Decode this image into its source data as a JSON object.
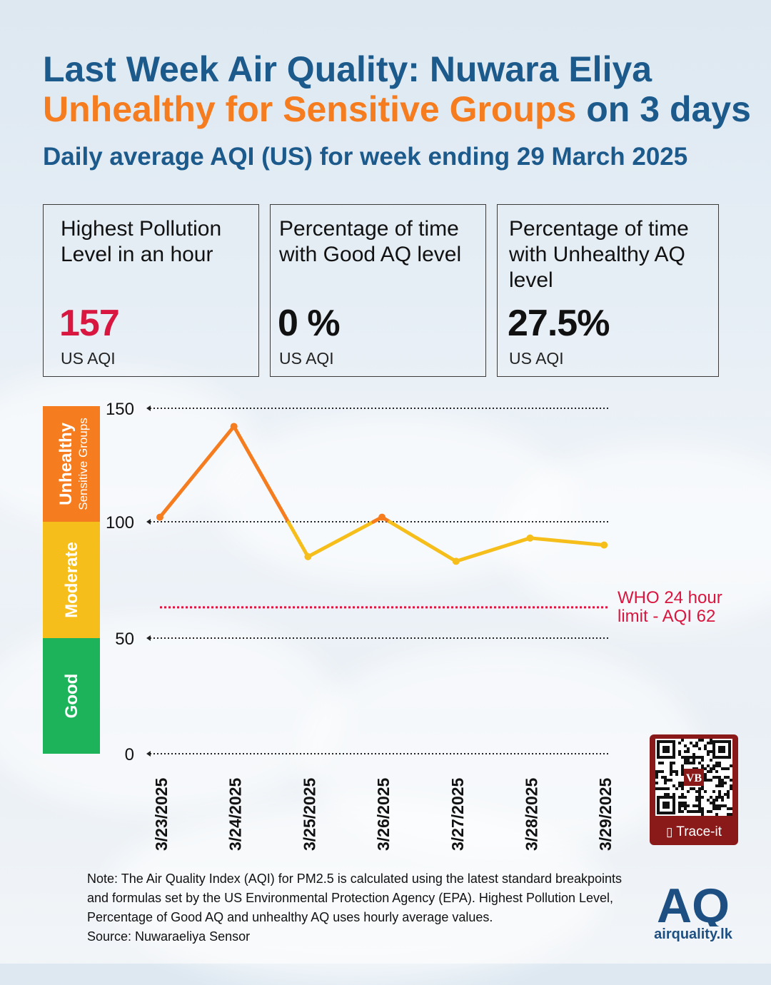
{
  "header": {
    "title_line1": "Last Week Air Quality: Nuwara Eliya",
    "title_line2_accent": "Unhealthy for Sensitive Groups",
    "title_line2_rest": " on 3 days",
    "subtitle": "Daily average AQI (US) for week ending 29 March 2025"
  },
  "cards": [
    {
      "label": "Highest Pollution Level in an hour",
      "value": "157",
      "unit": "US AQI",
      "value_color": "#d8163f"
    },
    {
      "label": "Percentage of time with Good AQ level",
      "value": "0 %",
      "unit": "US AQI",
      "value_color": "#111111"
    },
    {
      "label": "Percentage of time with Unhealthy AQ level",
      "value": "27.5%",
      "unit": "US AQI",
      "value_color": "#111111"
    }
  ],
  "chart_data": {
    "type": "line",
    "x": [
      "3/23/2025",
      "3/24/2025",
      "3/25/2025",
      "3/26/2025",
      "3/27/2025",
      "3/28/2025",
      "3/29/2025"
    ],
    "values": [
      102,
      142,
      85,
      102,
      83,
      93,
      90
    ],
    "yticks": [
      0,
      50,
      100,
      150
    ],
    "ylim": [
      0,
      150
    ],
    "reference_line": {
      "value": 62,
      "label_line1": "WHO 24 hour",
      "label_line2": "limit - AQI 62",
      "color": "#d8163f"
    },
    "bands": [
      {
        "label": "Good",
        "sublabel": "",
        "from": 0,
        "to": 50,
        "color": "#1db35b"
      },
      {
        "label": "Moderate",
        "sublabel": "",
        "from": 50,
        "to": 100,
        "color": "#f6be1a"
      },
      {
        "label": "Unhealthy",
        "sublabel": "Sensitive Groups",
        "from": 100,
        "to": 150,
        "color": "#f57c1f"
      }
    ],
    "line_colors": {
      "above_100": "#f57c1f",
      "below_100": "#f6be1a"
    }
  },
  "note": "Note: The Air Quality Index (AQI) for PM2.5 is calculated using the latest standard breakpoints and formulas set by the US Environmental Protection Agency (EPA). Highest Pollution Level, Percentage of Good AQ and unhealthy AQ uses hourly average values.",
  "source": "Source: Nuwaraeliya Sensor",
  "qr": {
    "label": "Trace-it",
    "center_text": "VB"
  },
  "logo": {
    "mark": "AQ",
    "text": "airquality.lk",
    "color": "#1d4f82"
  }
}
